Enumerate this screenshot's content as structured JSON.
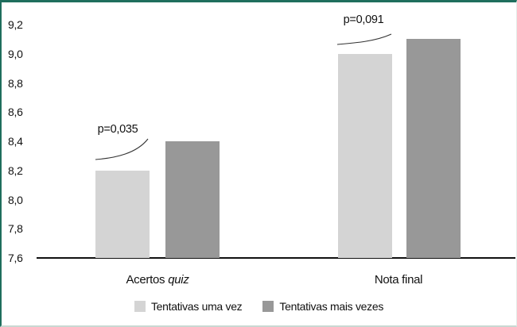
{
  "chart_data": {
    "type": "bar",
    "categories": [
      "Acertos quiz",
      "Nota final"
    ],
    "series": [
      {
        "name": "Tentativas uma vez",
        "values": [
          8.2,
          9.0
        ],
        "color": "#d4d4d4"
      },
      {
        "name": "Tentativas mais vezes",
        "values": [
          8.4,
          9.1
        ],
        "color": "#989898"
      }
    ],
    "annotations": [
      {
        "text": "p=0,035",
        "target_group": "Acertos quiz"
      },
      {
        "text": "p=0,091",
        "target_group": "Nota final"
      }
    ],
    "xaxis_labels": [
      {
        "text": "Acertos",
        "italic": "quiz"
      },
      {
        "text": "Nota final",
        "italic": ""
      }
    ],
    "ylim": [
      7.6,
      9.2
    ],
    "ytick_step": 0.2,
    "yticks": [
      "9,2",
      "9,0",
      "8,8",
      "8,6",
      "8,4",
      "8,2",
      "8,0",
      "7,8",
      "7,6"
    ],
    "grid": false,
    "legend_position": "bottom-center",
    "title": "",
    "frame_border_color": "#1f6e5d",
    "baseline_color": "#111111"
  }
}
